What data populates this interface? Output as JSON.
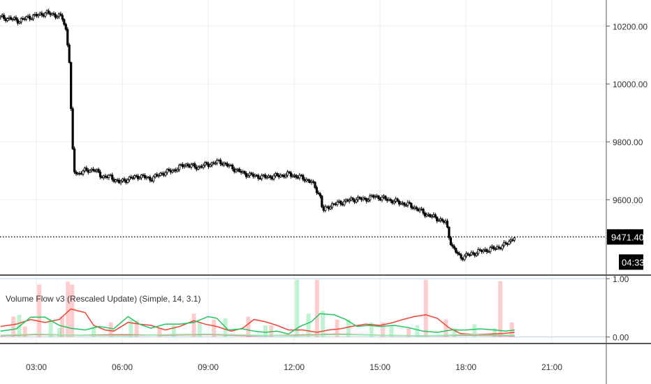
{
  "chart_data": [
    {
      "type": "candlestick",
      "name": "main-price-chart",
      "x_ticks": [
        "03:00",
        "06:00",
        "09:00",
        "12:00",
        "15:00",
        "18:00",
        "21:00"
      ],
      "x_tick_hours": [
        3,
        6,
        9,
        12,
        15,
        18,
        21
      ],
      "xlim_hours": [
        1.73,
        22.9
      ],
      "y_ticks": [
        "10200.00",
        "10000.00",
        "9800.00",
        "9600.00"
      ],
      "y_tick_values": [
        10200,
        10000,
        9800,
        9600
      ],
      "ylim": [
        9342,
        10290
      ],
      "grid": true,
      "last_price": "9471.40",
      "last_price_value": 9471.4,
      "countdown": "04:33",
      "price_path": [
        [
          1.75,
          10230
        ],
        [
          2.1,
          10225
        ],
        [
          2.4,
          10218
        ],
        [
          2.7,
          10230
        ],
        [
          3.0,
          10236
        ],
        [
          3.3,
          10245
        ],
        [
          3.6,
          10240
        ],
        [
          3.9,
          10230
        ],
        [
          4.05,
          10180
        ],
        [
          4.15,
          10080
        ],
        [
          4.22,
          9880
        ],
        [
          4.3,
          9700
        ],
        [
          4.45,
          9690
        ],
        [
          4.7,
          9700
        ],
        [
          5.0,
          9705
        ],
        [
          5.3,
          9680
        ],
        [
          5.6,
          9678
        ],
        [
          5.9,
          9660
        ],
        [
          6.2,
          9672
        ],
        [
          6.6,
          9682
        ],
        [
          7.0,
          9672
        ],
        [
          7.4,
          9692
        ],
        [
          7.8,
          9702
        ],
        [
          8.2,
          9722
        ],
        [
          8.6,
          9712
        ],
        [
          9.0,
          9722
        ],
        [
          9.4,
          9732
        ],
        [
          9.8,
          9712
        ],
        [
          10.2,
          9692
        ],
        [
          10.6,
          9682
        ],
        [
          11.0,
          9678
        ],
        [
          11.4,
          9682
        ],
        [
          11.8,
          9688
        ],
        [
          12.2,
          9678
        ],
        [
          12.6,
          9662
        ],
        [
          12.9,
          9615
        ],
        [
          13.0,
          9562
        ],
        [
          13.3,
          9582
        ],
        [
          13.7,
          9592
        ],
        [
          14.1,
          9602
        ],
        [
          14.5,
          9602
        ],
        [
          14.8,
          9612
        ],
        [
          15.2,
          9602
        ],
        [
          15.6,
          9592
        ],
        [
          16.0,
          9582
        ],
        [
          16.3,
          9568
        ],
        [
          16.6,
          9550
        ],
        [
          17.0,
          9535
        ],
        [
          17.3,
          9520
        ],
        [
          17.5,
          9440
        ],
        [
          17.8,
          9400
        ],
        [
          18.1,
          9410
        ],
        [
          18.5,
          9422
        ],
        [
          18.9,
          9430
        ],
        [
          19.3,
          9440
        ],
        [
          19.7,
          9471
        ]
      ]
    },
    {
      "type": "mixed",
      "name": "volume-flow-indicator",
      "title": "Volume Flow v3 (Rescaled Update) (Simple, 14, 3.1)",
      "y_ticks": [
        "1.00",
        "0.00"
      ],
      "y_tick_values": [
        1,
        0
      ],
      "ylim": [
        -0.1,
        1.05
      ],
      "grid": true,
      "series": [
        {
          "kind": "line",
          "color": "#f44336",
          "values": [
            [
              1.75,
              0.18
            ],
            [
              2.3,
              0.22
            ],
            [
              2.8,
              0.3
            ],
            [
              3.3,
              0.25
            ],
            [
              3.8,
              0.3
            ],
            [
              4.2,
              0.48
            ],
            [
              4.7,
              0.42
            ],
            [
              5.0,
              0.2
            ],
            [
              5.4,
              0.12
            ],
            [
              5.7,
              0.1
            ],
            [
              6.2,
              0.25
            ],
            [
              6.6,
              0.22
            ],
            [
              7.0,
              0.2
            ],
            [
              7.5,
              0.12
            ],
            [
              8.0,
              0.18
            ],
            [
              8.5,
              0.28
            ],
            [
              8.9,
              0.22
            ],
            [
              9.3,
              0.18
            ],
            [
              9.8,
              0.1
            ],
            [
              10.2,
              0.15
            ],
            [
              10.6,
              0.3
            ],
            [
              11.0,
              0.26
            ],
            [
              11.4,
              0.2
            ],
            [
              11.8,
              0.12
            ],
            [
              12.3,
              0.12
            ],
            [
              12.8,
              0.08
            ],
            [
              13.2,
              0.12
            ],
            [
              13.6,
              0.14
            ],
            [
              14.0,
              0.18
            ],
            [
              14.5,
              0.22
            ],
            [
              15.0,
              0.2
            ],
            [
              15.4,
              0.24
            ],
            [
              15.8,
              0.3
            ],
            [
              16.2,
              0.35
            ],
            [
              16.6,
              0.38
            ],
            [
              17.0,
              0.32
            ],
            [
              17.4,
              0.16
            ],
            [
              17.8,
              0.06
            ],
            [
              18.3,
              0.04
            ],
            [
              18.8,
              0.05
            ],
            [
              19.3,
              0.06
            ],
            [
              19.7,
              0.08
            ]
          ]
        },
        {
          "kind": "line",
          "color": "#22c55e",
          "values": [
            [
              1.75,
              0.1
            ],
            [
              2.3,
              0.14
            ],
            [
              2.8,
              0.34
            ],
            [
              3.3,
              0.34
            ],
            [
              3.8,
              0.2
            ],
            [
              4.2,
              0.15
            ],
            [
              4.7,
              0.12
            ],
            [
              5.2,
              0.18
            ],
            [
              5.7,
              0.14
            ],
            [
              6.2,
              0.35
            ],
            [
              6.6,
              0.22
            ],
            [
              7.0,
              0.15
            ],
            [
              7.5,
              0.22
            ],
            [
              8.0,
              0.22
            ],
            [
              8.5,
              0.25
            ],
            [
              9.0,
              0.35
            ],
            [
              9.3,
              0.32
            ],
            [
              9.7,
              0.12
            ],
            [
              10.2,
              0.14
            ],
            [
              10.6,
              0.1
            ],
            [
              11.0,
              0.08
            ],
            [
              11.4,
              0.1
            ],
            [
              11.8,
              0.05
            ],
            [
              12.2,
              0.18
            ],
            [
              12.6,
              0.26
            ],
            [
              12.9,
              0.4
            ],
            [
              13.4,
              0.38
            ],
            [
              13.8,
              0.3
            ],
            [
              14.2,
              0.18
            ],
            [
              14.6,
              0.2
            ],
            [
              15.0,
              0.18
            ],
            [
              15.5,
              0.2
            ],
            [
              16.0,
              0.16
            ],
            [
              16.5,
              0.1
            ],
            [
              17.0,
              0.08
            ],
            [
              17.5,
              0.12
            ],
            [
              18.0,
              0.12
            ],
            [
              18.5,
              0.14
            ],
            [
              19.0,
              0.12
            ],
            [
              19.4,
              0.1
            ],
            [
              19.7,
              0.12
            ]
          ]
        },
        {
          "kind": "line",
          "color": "#f87171",
          "values": [
            [
              1.75,
              0.02
            ],
            [
              3.0,
              0.04
            ],
            [
              4.5,
              0.03
            ],
            [
              6.0,
              0.04
            ],
            [
              7.5,
              0.03
            ],
            [
              9.0,
              0.04
            ],
            [
              10.5,
              0.02
            ],
            [
              12.0,
              0.03
            ],
            [
              13.5,
              0.05
            ],
            [
              15.0,
              0.03
            ],
            [
              16.5,
              0.02
            ],
            [
              18.0,
              0.03
            ],
            [
              19.7,
              0.02
            ]
          ]
        },
        {
          "kind": "line",
          "color": "#86efac",
          "values": [
            [
              1.75,
              0.03
            ],
            [
              3.0,
              0.05
            ],
            [
              4.5,
              0.03
            ],
            [
              6.0,
              0.02
            ],
            [
              7.5,
              0.04
            ],
            [
              9.0,
              0.05
            ],
            [
              10.5,
              0.03
            ],
            [
              12.0,
              0.02
            ],
            [
              13.5,
              0.04
            ],
            [
              15.0,
              0.03
            ],
            [
              16.5,
              0.02
            ],
            [
              18.0,
              0.04
            ],
            [
              19.7,
              0.03
            ]
          ]
        },
        {
          "kind": "bars",
          "name": "sell-volume-bars",
          "color": "#f87171",
          "values": [
            [
              2.2,
              0.35
            ],
            [
              2.6,
              0.18
            ],
            [
              3.1,
              0.9
            ],
            [
              3.9,
              0.35
            ],
            [
              4.1,
              0.95
            ],
            [
              4.25,
              0.9
            ],
            [
              5.6,
              0.25
            ],
            [
              6.5,
              0.28
            ],
            [
              7.3,
              0.15
            ],
            [
              8.5,
              0.4
            ],
            [
              9.2,
              0.3
            ],
            [
              10.4,
              0.35
            ],
            [
              11.2,
              0.2
            ],
            [
              12.8,
              0.98
            ],
            [
              13.5,
              0.3
            ],
            [
              15.1,
              0.25
            ],
            [
              16.0,
              0.15
            ],
            [
              16.6,
              0.98
            ],
            [
              17.3,
              0.3
            ],
            [
              19.2,
              0.96
            ],
            [
              19.6,
              0.25
            ]
          ]
        },
        {
          "kind": "bars",
          "name": "buy-volume-bars",
          "color": "#4ade80",
          "values": [
            [
              2.4,
              0.38
            ],
            [
              3.5,
              0.3
            ],
            [
              3.8,
              0.15
            ],
            [
              5.0,
              0.18
            ],
            [
              6.3,
              0.3
            ],
            [
              7.8,
              0.2
            ],
            [
              8.7,
              0.25
            ],
            [
              9.6,
              0.32
            ],
            [
              11.0,
              0.2
            ],
            [
              12.1,
              0.98
            ],
            [
              12.5,
              0.4
            ],
            [
              13.0,
              0.45
            ],
            [
              13.9,
              0.3
            ],
            [
              14.7,
              0.25
            ],
            [
              15.4,
              0.2
            ],
            [
              16.3,
              0.2
            ],
            [
              17.6,
              0.15
            ],
            [
              18.3,
              0.22
            ],
            [
              19.0,
              0.15
            ]
          ]
        }
      ]
    }
  ]
}
